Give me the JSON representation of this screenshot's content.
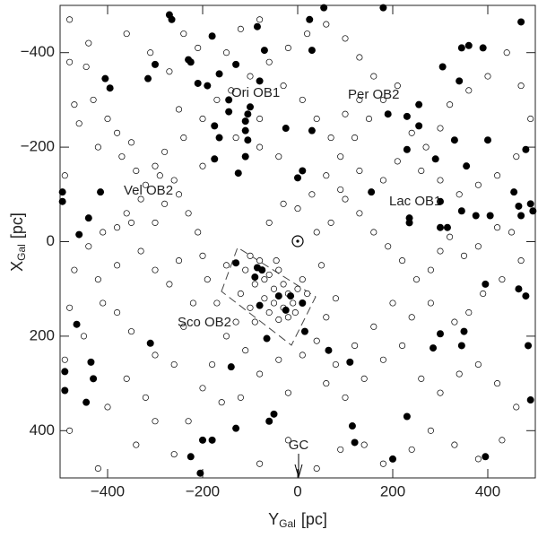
{
  "chart_data": {
    "type": "scatter",
    "xlabel": {
      "main": "Y",
      "sub": "Gal",
      "unit": "[pc]"
    },
    "ylabel": {
      "main": "X",
      "sub": "Gal",
      "unit": "[pc]"
    },
    "xlim": [
      -500,
      500
    ],
    "ylim": [
      500,
      -500
    ],
    "xticks": [
      {
        "value": -400,
        "label": "−400"
      },
      {
        "value": -200,
        "label": "−200"
      },
      0,
      200,
      400
    ],
    "yticks": [
      {
        "value": -400,
        "label": "−400"
      },
      {
        "value": -200,
        "label": "−200"
      },
      0,
      200,
      400
    ],
    "annotations": [
      "Ori OB1",
      "Per OB2",
      "Vel OB2",
      "Lac OB1",
      "Sco OB2",
      "GC"
    ],
    "series": [
      {
        "color": "#000000",
        "filled": false,
        "x": [
          -440,
          -445,
          -430,
          -470,
          -460,
          -400,
          -380,
          -420,
          -370,
          -350,
          -340,
          -320,
          -300,
          -280,
          -290,
          -260,
          -330,
          -360,
          -380,
          -410,
          -440,
          -470,
          -420,
          -380,
          -350,
          -300,
          -280,
          -250,
          -230,
          -210,
          -330,
          -300,
          -270,
          -250,
          -200,
          -380,
          -410,
          -350,
          -300,
          -260,
          -360,
          -320,
          -400,
          -300,
          -340,
          -420,
          -260,
          -230,
          -200,
          -180,
          -150,
          -170,
          -190,
          -150,
          -100,
          -110,
          -90,
          -70,
          -60,
          -50,
          -40,
          -30,
          -20,
          -10,
          -5,
          -30,
          -50,
          -70,
          -60,
          -40,
          -20,
          0,
          10,
          20,
          -80,
          -45,
          -120,
          -100,
          -90,
          -130,
          -110,
          -80,
          -40,
          -20,
          10,
          40,
          60,
          80,
          50,
          40,
          70,
          100,
          130,
          160,
          190,
          220,
          250,
          280,
          300,
          320,
          350,
          380,
          420,
          450,
          470,
          430,
          390,
          360,
          330,
          280,
          240,
          200,
          160,
          120,
          80,
          60,
          100,
          140,
          180,
          220,
          260,
          300,
          340,
          380,
          420,
          460,
          430,
          380,
          330,
          280,
          240,
          180,
          140,
          90,
          40,
          -20,
          -80,
          -120,
          -160,
          -60,
          -30,
          0,
          30,
          60,
          90,
          120,
          150,
          180,
          210,
          160,
          130,
          100,
          60,
          20,
          -20,
          -60,
          -100,
          -140,
          -150,
          -120,
          -80,
          -30,
          10,
          40,
          70,
          100,
          130,
          240,
          270,
          300,
          320,
          360,
          400,
          440,
          470,
          490,
          460,
          420,
          380,
          340,
          300,
          260,
          210,
          180,
          130,
          90,
          -240,
          -210,
          -270,
          -310,
          -360,
          -480,
          -480,
          -490,
          -480,
          -490,
          -450,
          -480,
          -240,
          -220,
          -200,
          -240,
          -250,
          -200,
          -170,
          -130,
          -80,
          -40,
          -80
        ],
        "y": [
          -420,
          -370,
          -300,
          -290,
          -250,
          -260,
          -230,
          -200,
          -180,
          -210,
          -150,
          -120,
          -160,
          -190,
          -140,
          -130,
          -90,
          -60,
          -30,
          -20,
          10,
          60,
          80,
          50,
          -40,
          -40,
          -80,
          -100,
          -60,
          -20,
          20,
          60,
          90,
          40,
          30,
          150,
          130,
          190,
          240,
          260,
          290,
          330,
          350,
          380,
          430,
          480,
          450,
          380,
          310,
          260,
          200,
          130,
          80,
          50,
          30,
          60,
          90,
          80,
          70,
          100,
          60,
          90,
          110,
          130,
          150,
          140,
          130,
          120,
          150,
          165,
          160,
          100,
          80,
          110,
          40,
          40,
          110,
          140,
          170,
          170,
          230,
          280,
          250,
          320,
          240,
          210,
          160,
          120,
          50,
          -20,
          -40,
          -90,
          -60,
          -20,
          10,
          40,
          80,
          60,
          20,
          -10,
          30,
          10,
          -30,
          -20,
          40,
          80,
          110,
          150,
          170,
          130,
          160,
          130,
          180,
          220,
          260,
          300,
          330,
          290,
          250,
          220,
          290,
          320,
          280,
          260,
          300,
          350,
          420,
          460,
          430,
          400,
          440,
          470,
          430,
          440,
          480,
          420,
          470,
          330,
          340,
          -40,
          -80,
          -70,
          -100,
          -140,
          -180,
          -220,
          -260,
          -300,
          -330,
          -350,
          -390,
          -430,
          -460,
          -440,
          -410,
          -380,
          -350,
          -320,
          -400,
          -450,
          -470,
          -330,
          -300,
          -260,
          -220,
          -270,
          -300,
          -230,
          -200,
          -240,
          -290,
          -320,
          -350,
          -400,
          -330,
          -260,
          -180,
          -140,
          -120,
          -100,
          -130,
          -150,
          -170,
          -130,
          -150,
          -110,
          -440,
          -410,
          -360,
          -400,
          -440,
          -470,
          -380,
          -140,
          140,
          250,
          200,
          400,
          180,
          130,
          -160,
          -220,
          -280,
          -260,
          -300,
          -220,
          -260,
          -180,
          -200
        ]
      },
      {
        "color": "#000000",
        "filled": true,
        "x": [
          -270,
          -265,
          -85,
          25,
          55,
          180,
          -180,
          -70,
          30,
          -230,
          -225,
          -300,
          -130,
          -405,
          -315,
          -395,
          -210,
          -165,
          -80,
          -190,
          305,
          345,
          360,
          390,
          470,
          340,
          -145,
          -145,
          -100,
          -105,
          -110,
          -175,
          -110,
          -105,
          -165,
          -25,
          -175,
          -110,
          30,
          190,
          230,
          255,
          255,
          330,
          400,
          355,
          230,
          290,
          10,
          -495,
          -495,
          -415,
          -440,
          -460,
          -125,
          0,
          480,
          455,
          490,
          495,
          155,
          235,
          235,
          300,
          300,
          345,
          375,
          405,
          465,
          470,
          315,
          395,
          465,
          480,
          -130,
          -85,
          -90,
          -75,
          -80,
          -40,
          -15,
          -25,
          10,
          -65,
          15,
          65,
          110,
          -310,
          -435,
          -430,
          -445,
          -490,
          -465,
          -490,
          300,
          350,
          345,
          485,
          490,
          285,
          -140,
          -130,
          -200,
          -180,
          -225,
          -205,
          -50,
          -60,
          115,
          120,
          230,
          200,
          395
        ],
        "y": [
          -480,
          -470,
          -455,
          -470,
          -495,
          -495,
          -435,
          -405,
          -405,
          -385,
          -380,
          -375,
          -375,
          -345,
          -345,
          -325,
          -335,
          -355,
          -340,
          -330,
          -370,
          -410,
          -415,
          -410,
          -465,
          -340,
          -300,
          -275,
          -285,
          -270,
          -255,
          -245,
          -235,
          -215,
          -220,
          -240,
          -175,
          -180,
          -235,
          -270,
          -265,
          -290,
          -245,
          -215,
          -215,
          -160,
          -195,
          -175,
          -150,
          -105,
          -85,
          -105,
          -50,
          -15,
          -145,
          -135,
          -195,
          -105,
          -80,
          -65,
          -105,
          -50,
          -40,
          -85,
          -30,
          -65,
          -55,
          -55,
          -75,
          -55,
          -30,
          90,
          100,
          115,
          45,
          55,
          75,
          60,
          135,
          115,
          115,
          145,
          130,
          205,
          190,
          230,
          255,
          215,
          255,
          290,
          340,
          315,
          175,
          275,
          195,
          190,
          220,
          220,
          335,
          225,
          265,
          395,
          420,
          420,
          455,
          490,
          365,
          380,
          390,
          425,
          370,
          460,
          455
        ]
      }
    ]
  }
}
